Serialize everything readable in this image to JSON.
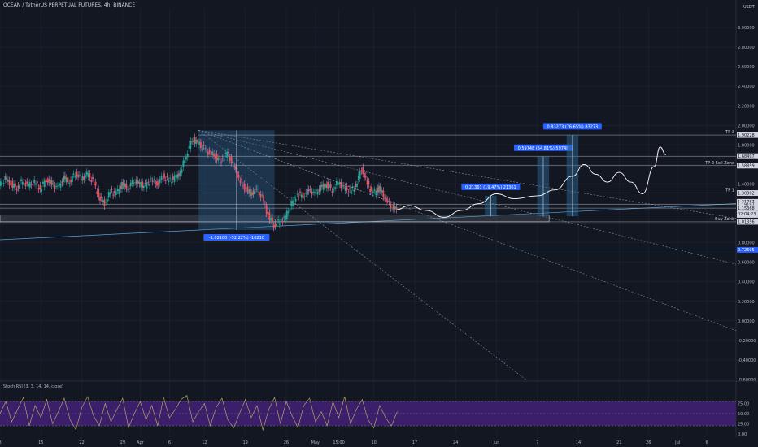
{
  "header": {
    "title": "OCEAN / TetherUS PERPETUAL FUTURES, 4h, BINANCE"
  },
  "oscillator": {
    "title": "Stoch RSI (3, 3, 14, 14, close)"
  },
  "price_axis": {
    "currency": "USDT"
  },
  "colors": {
    "background": "#131722",
    "grid": "#1f2430",
    "up": "#26a69a",
    "down": "#ef5350",
    "wick": "#e57fd3",
    "zone_fill": "#2d6c9c",
    "label_blue": "#2962ff",
    "osc_band": "#3b1f6b",
    "osc_line": "#c7b36a",
    "projection": "#ffffff",
    "trendline": "#4fa3d9"
  },
  "chart_data": [
    {
      "type": "line",
      "title": "OCEAN / TetherUS PERPETUAL FUTURES, 4h, BINANCE",
      "xlabel": "",
      "ylabel": "",
      "ylim": [
        -0.6,
        3.2
      ],
      "y_ticks": [
        "3.00000",
        "2.80000",
        "2.60000",
        "2.40000",
        "2.20000",
        "2.00000",
        "1.80000",
        "1.60000",
        "1.40000",
        "1.20000",
        "1.00000",
        "0.80000",
        "0.60000",
        "0.40000",
        "0.20000",
        "0.00000",
        "-0.20000",
        "-0.40000",
        "-0.60000"
      ],
      "y_tick_values": [
        3.0,
        2.8,
        2.6,
        2.4,
        2.2,
        2.0,
        1.8,
        1.6,
        1.4,
        1.2,
        1.0,
        0.8,
        0.6,
        0.4,
        0.2,
        0.0,
        -0.2,
        -0.4,
        -0.6
      ],
      "x_ticks": [
        "8",
        "15",
        "22",
        "29",
        "Apr",
        "6",
        "12",
        "19",
        "26",
        "May",
        "15:00",
        "10",
        "17",
        "24",
        "Jun",
        "7",
        "14",
        "21",
        "26",
        "Jul",
        "6"
      ],
      "x_tick_positions": [
        0,
        7,
        14,
        21,
        24,
        29,
        35,
        42,
        49,
        54,
        58,
        64,
        71,
        78,
        85,
        92,
        99,
        106,
        111,
        116,
        121
      ],
      "price_path": [
        {
          "x": 0,
          "y": 1.38
        },
        {
          "x": 1,
          "y": 1.45
        },
        {
          "x": 2,
          "y": 1.4
        },
        {
          "x": 3,
          "y": 1.36
        },
        {
          "x": 4,
          "y": 1.44
        },
        {
          "x": 5,
          "y": 1.38
        },
        {
          "x": 6,
          "y": 1.42
        },
        {
          "x": 7,
          "y": 1.35
        },
        {
          "x": 8,
          "y": 1.45
        },
        {
          "x": 9,
          "y": 1.4
        },
        {
          "x": 10,
          "y": 1.36
        },
        {
          "x": 11,
          "y": 1.46
        },
        {
          "x": 12,
          "y": 1.42
        },
        {
          "x": 13,
          "y": 1.52
        },
        {
          "x": 14,
          "y": 1.45
        },
        {
          "x": 15,
          "y": 1.5
        },
        {
          "x": 16,
          "y": 1.43
        },
        {
          "x": 17,
          "y": 1.28
        },
        {
          "x": 18,
          "y": 1.2
        },
        {
          "x": 19,
          "y": 1.32
        },
        {
          "x": 20,
          "y": 1.3
        },
        {
          "x": 21,
          "y": 1.4
        },
        {
          "x": 22,
          "y": 1.36
        },
        {
          "x": 23,
          "y": 1.44
        },
        {
          "x": 24,
          "y": 1.4
        },
        {
          "x": 25,
          "y": 1.38
        },
        {
          "x": 26,
          "y": 1.44
        },
        {
          "x": 27,
          "y": 1.4
        },
        {
          "x": 28,
          "y": 1.48
        },
        {
          "x": 29,
          "y": 1.43
        },
        {
          "x": 30,
          "y": 1.46
        },
        {
          "x": 31,
          "y": 1.52
        },
        {
          "x": 32,
          "y": 1.7
        },
        {
          "x": 33,
          "y": 1.86
        },
        {
          "x": 34,
          "y": 1.82
        },
        {
          "x": 35,
          "y": 1.76
        },
        {
          "x": 36,
          "y": 1.72
        },
        {
          "x": 37,
          "y": 1.68
        },
        {
          "x": 38,
          "y": 1.64
        },
        {
          "x": 39,
          "y": 1.72
        },
        {
          "x": 40,
          "y": 1.6
        },
        {
          "x": 41,
          "y": 1.46
        },
        {
          "x": 42,
          "y": 1.36
        },
        {
          "x": 43,
          "y": 1.3
        },
        {
          "x": 44,
          "y": 1.34
        },
        {
          "x": 45,
          "y": 1.26
        },
        {
          "x": 46,
          "y": 1.08
        },
        {
          "x": 47,
          "y": 0.98
        },
        {
          "x": 48,
          "y": 1.02
        },
        {
          "x": 49,
          "y": 1.06
        },
        {
          "x": 50,
          "y": 1.2
        },
        {
          "x": 51,
          "y": 1.3
        },
        {
          "x": 52,
          "y": 1.28
        },
        {
          "x": 53,
          "y": 1.34
        },
        {
          "x": 54,
          "y": 1.3
        },
        {
          "x": 55,
          "y": 1.36
        },
        {
          "x": 56,
          "y": 1.4
        },
        {
          "x": 57,
          "y": 1.34
        },
        {
          "x": 58,
          "y": 1.42
        },
        {
          "x": 59,
          "y": 1.36
        },
        {
          "x": 60,
          "y": 1.32
        },
        {
          "x": 61,
          "y": 1.38
        },
        {
          "x": 62,
          "y": 1.56
        },
        {
          "x": 63,
          "y": 1.4
        },
        {
          "x": 64,
          "y": 1.3
        },
        {
          "x": 65,
          "y": 1.36
        },
        {
          "x": 66,
          "y": 1.26
        },
        {
          "x": 67,
          "y": 1.18
        },
        {
          "x": 68,
          "y": 1.14
        }
      ],
      "projection_path": [
        {
          "x": 68,
          "y": 1.14
        },
        {
          "x": 70,
          "y": 1.18
        },
        {
          "x": 73,
          "y": 1.13
        },
        {
          "x": 76,
          "y": 1.06
        },
        {
          "x": 79,
          "y": 1.13
        },
        {
          "x": 82,
          "y": 1.2
        },
        {
          "x": 85,
          "y": 1.3
        },
        {
          "x": 88,
          "y": 1.25
        },
        {
          "x": 92,
          "y": 1.28
        },
        {
          "x": 95,
          "y": 1.34
        },
        {
          "x": 98,
          "y": 1.48
        },
        {
          "x": 100,
          "y": 1.6
        },
        {
          "x": 102,
          "y": 1.5
        },
        {
          "x": 104,
          "y": 1.42
        },
        {
          "x": 106,
          "y": 1.52
        },
        {
          "x": 108,
          "y": 1.42
        },
        {
          "x": 110,
          "y": 1.3
        },
        {
          "x": 112,
          "y": 1.58
        },
        {
          "x": 113,
          "y": 1.78
        },
        {
          "x": 114,
          "y": 1.7
        }
      ],
      "levels": [
        {
          "name": "TP 3",
          "value": 1.90228,
          "label": "1.90228"
        },
        {
          "name": "",
          "value": 1.68497,
          "label": "1.68497"
        },
        {
          "name": "TP 2 Sell Zone",
          "value": 1.58859,
          "label": "1.58859"
        },
        {
          "name": "TP 1",
          "value": 1.30802,
          "label": "1.30802"
        },
        {
          "name": "",
          "value": 1.21787,
          "label": "1.21787"
        },
        {
          "name": "",
          "value": 1.19197,
          "label": "1.19197"
        },
        {
          "name": "",
          "value": 1.15368,
          "label": "1.15368"
        },
        {
          "name": "",
          "value": 1.08447,
          "label": "1.08447"
        },
        {
          "name": "Buy Zone",
          "value": 1.01356,
          "label": "1.01356"
        },
        {
          "name": "",
          "value": 0.72695,
          "label": "0.72695"
        }
      ],
      "countdown_label": "02:04:23",
      "measurements": [
        {
          "label": "-1.02100 (-52.22%) -10210",
          "x_from": 34,
          "x_to": 47,
          "y_from": 1.95,
          "y_to": 0.93
        },
        {
          "label": "0.21361 (19.47%) 21361",
          "x_from": 83,
          "x_to": 85,
          "y_from": 1.07,
          "y_to": 1.28
        },
        {
          "label": "0.59748 (54.81%) 59748",
          "x_from": 92,
          "x_to": 94,
          "y_from": 1.07,
          "y_to": 1.68
        },
        {
          "label": "0.83273 (76.65%) 83273",
          "x_from": 97,
          "x_to": 99,
          "y_from": 1.07,
          "y_to": 1.9
        }
      ]
    },
    {
      "type": "line",
      "title": "Stoch RSI (3, 3, 14, 14, close)",
      "xlabel": "",
      "ylabel": "",
      "ylim": [
        0,
        100
      ],
      "y_ticks": [
        "75.00",
        "50.00",
        "25.00",
        "0.00"
      ],
      "y_tick_values": [
        75,
        50,
        25,
        0
      ],
      "band": [
        20,
        80
      ],
      "x": [
        0,
        1,
        2,
        3,
        4,
        5,
        6,
        7,
        8,
        9,
        10,
        11,
        12,
        13,
        14,
        15,
        16,
        17,
        18,
        19,
        20,
        21,
        22,
        23,
        24,
        25,
        26,
        27,
        28,
        29,
        30,
        31,
        32,
        33,
        34,
        35,
        36,
        37,
        38,
        39,
        40,
        41,
        42,
        43,
        44,
        45,
        46,
        47,
        48,
        49,
        50,
        51,
        52,
        53,
        54,
        55,
        56,
        57,
        58,
        59,
        60,
        61,
        62,
        63,
        64,
        65,
        66,
        67,
        68
      ],
      "values": [
        50,
        80,
        30,
        60,
        90,
        20,
        70,
        40,
        85,
        25,
        55,
        88,
        35,
        10,
        65,
        92,
        45,
        20,
        75,
        30,
        60,
        88,
        15,
        50,
        80,
        35,
        70,
        20,
        90,
        40,
        60,
        85,
        95,
        30,
        55,
        75,
        20,
        65,
        88,
        35,
        15,
        50,
        85,
        40,
        70,
        10,
        60,
        90,
        25,
        80,
        45,
        15,
        70,
        88,
        30,
        55,
        20,
        80,
        40,
        92,
        25,
        60,
        85,
        35,
        15,
        70,
        40,
        20,
        55
      ]
    }
  ]
}
